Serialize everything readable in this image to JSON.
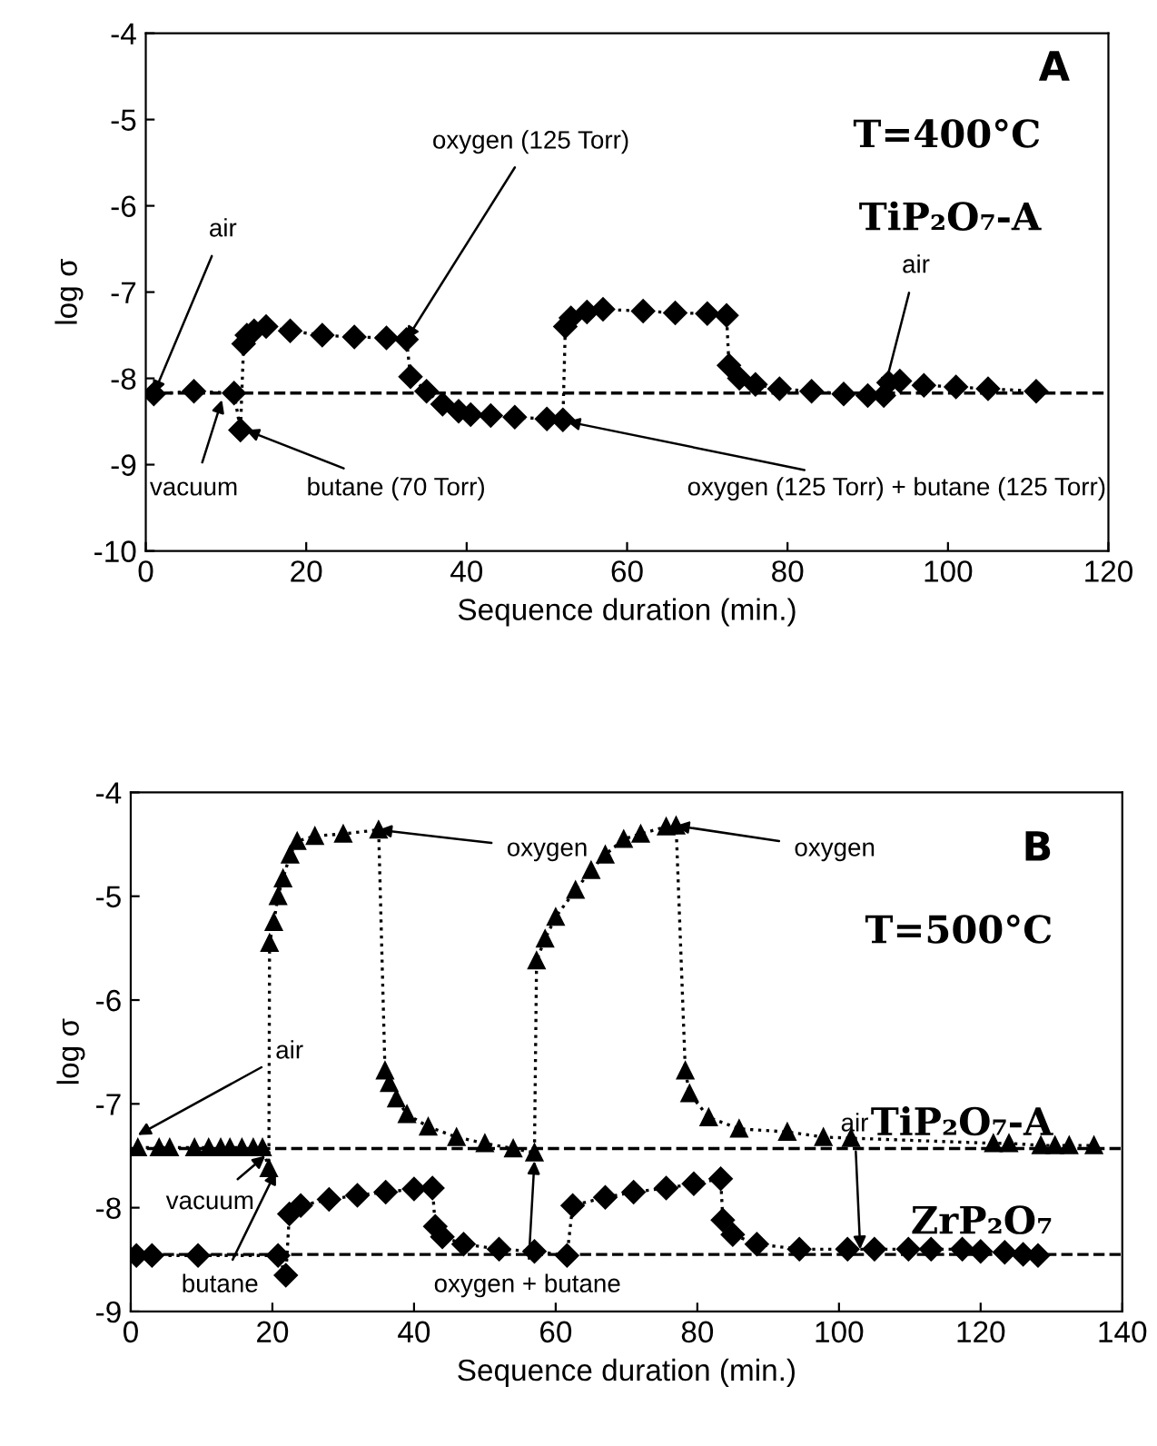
{
  "chart_data": [
    {
      "type": "line",
      "xlabel": "Sequence duration (min.)",
      "ylabel": "log σ",
      "xlim": [
        0,
        120
      ],
      "xticks": [
        0,
        20,
        40,
        60,
        80,
        100,
        120
      ],
      "ylim": [
        -10,
        -4
      ],
      "yticks": [
        -10,
        -9,
        -8,
        -7,
        -6,
        -5,
        -4
      ],
      "grid": false,
      "legend": false,
      "line_style": "dotted",
      "series": [
        {
          "color": "#000000",
          "marker": "diamond",
          "x": [
            1,
            6,
            11,
            11.8,
            12.2,
            12.6,
            13.5,
            15,
            18,
            22,
            26,
            30,
            32.5,
            33,
            35,
            37,
            39,
            40.5,
            43,
            46,
            50,
            52,
            52.3,
            53,
            55,
            57,
            62,
            66,
            70,
            72.4,
            72.7,
            74,
            76,
            79,
            83,
            87,
            90,
            92,
            92.6,
            94,
            97,
            101,
            105,
            111
          ],
          "values": [
            -8.18,
            -8.15,
            -8.17,
            -8.6,
            -7.6,
            -7.5,
            -7.45,
            -7.4,
            -7.45,
            -7.5,
            -7.52,
            -7.53,
            -7.55,
            -7.98,
            -8.15,
            -8.3,
            -8.38,
            -8.42,
            -8.43,
            -8.45,
            -8.47,
            -8.48,
            -7.4,
            -7.3,
            -7.23,
            -7.2,
            -7.22,
            -7.24,
            -7.25,
            -7.27,
            -7.85,
            -8.0,
            -8.07,
            -8.12,
            -8.15,
            -8.18,
            -8.2,
            -8.2,
            -8.05,
            -8.03,
            -8.08,
            -8.1,
            -8.12,
            -8.15
          ]
        }
      ],
      "ref_lines": [
        {
          "axis": "y",
          "value": -8.17,
          "line_style": "dashed",
          "color": "#000000"
        }
      ],
      "annotations": [
        "A",
        "T=400°C",
        "TiP₂O₇-A",
        {
          "text": "air",
          "x": 1,
          "y": -8.18
        },
        {
          "text": "vacuum",
          "x": 9.5,
          "y": -8.25
        },
        {
          "text": "butane (70 Torr)",
          "x": 12.5,
          "y": -8.6
        },
        {
          "text": "oxygen (125 Torr)",
          "x": 32.5,
          "y": -7.55
        },
        {
          "text": "oxygen (125 Torr) + butane (125 Torr)",
          "x": 52.5,
          "y": -8.5
        },
        {
          "text": "air",
          "x": 92,
          "y": -8.15
        }
      ]
    },
    {
      "type": "line",
      "xlabel": "Sequence duration (min.)",
      "ylabel": "log σ",
      "xlim": [
        0,
        140
      ],
      "xticks": [
        0,
        20,
        40,
        60,
        80,
        100,
        120,
        140
      ],
      "ylim": [
        -9,
        -4
      ],
      "yticks": [
        -9,
        -8,
        -7,
        -6,
        -5,
        -4
      ],
      "grid": false,
      "legend": false,
      "line_style": "dotted",
      "series": [
        {
          "color": "#000000",
          "marker": "triangle",
          "x": [
            1,
            4,
            5.5,
            9,
            11,
            12.7,
            14,
            15.7,
            17.3,
            18.6,
            19.5,
            19.6,
            20.2,
            20.8,
            21.5,
            22.5,
            23.5,
            26,
            30,
            35,
            35.9,
            36.5,
            37.5,
            39,
            42,
            46,
            50,
            54,
            57,
            57.3,
            58.5,
            60,
            62.8,
            65,
            67,
            69.6,
            72,
            75.6,
            77,
            78.3,
            78.9,
            81.6,
            85.9,
            92.7,
            97.8,
            101.7,
            121.8,
            124,
            128.5,
            130.5,
            132.5,
            136
          ],
          "values": [
            -7.42,
            -7.42,
            -7.42,
            -7.42,
            -7.42,
            -7.42,
            -7.42,
            -7.42,
            -7.42,
            -7.42,
            -7.62,
            -5.45,
            -5.25,
            -5.0,
            -4.83,
            -4.6,
            -4.47,
            -4.42,
            -4.4,
            -4.36,
            -6.68,
            -6.8,
            -6.95,
            -7.1,
            -7.22,
            -7.32,
            -7.38,
            -7.43,
            -7.47,
            -5.62,
            -5.41,
            -5.2,
            -4.94,
            -4.75,
            -4.6,
            -4.45,
            -4.4,
            -4.33,
            -4.32,
            -6.68,
            -6.9,
            -7.13,
            -7.24,
            -7.27,
            -7.32,
            -7.33,
            -7.38,
            -7.38,
            -7.4,
            -7.4,
            -7.4,
            -7.4
          ]
        },
        {
          "color": "#000000",
          "marker": "diamond",
          "x": [
            0.8,
            3,
            9.5,
            20.8,
            21.9,
            22.4,
            24,
            28,
            32,
            36,
            40,
            42.6,
            43,
            44,
            47,
            52,
            57,
            61.6,
            62.4,
            67,
            71,
            75.6,
            79.5,
            83.3,
            83.6,
            85,
            88.4,
            94.4,
            101.2,
            105,
            109.8,
            113,
            117.4,
            120,
            123.4,
            126,
            128.1
          ],
          "values": [
            -8.46,
            -8.46,
            -8.46,
            -8.46,
            -8.65,
            -8.06,
            -7.98,
            -7.92,
            -7.88,
            -7.85,
            -7.82,
            -7.81,
            -8.18,
            -8.28,
            -8.35,
            -8.4,
            -8.42,
            -8.46,
            -7.98,
            -7.9,
            -7.85,
            -7.81,
            -7.77,
            -7.72,
            -8.12,
            -8.26,
            -8.35,
            -8.4,
            -8.4,
            -8.4,
            -8.4,
            -8.4,
            -8.4,
            -8.42,
            -8.43,
            -8.45,
            -8.46
          ]
        }
      ],
      "ref_lines": [
        {
          "axis": "y",
          "value": -7.43,
          "line_style": "dashed",
          "color": "#000000"
        },
        {
          "axis": "y",
          "value": -8.45,
          "line_style": "dashed",
          "color": "#000000"
        }
      ],
      "annotations": [
        "B",
        "T=500°C",
        "TiP₂O₇-A",
        "ZrP₂O₇",
        {
          "text": "air",
          "x": 1,
          "y": -7.3
        },
        {
          "text": "vacuum",
          "x": 19,
          "y": -7.5
        },
        {
          "text": "butane",
          "x": 20.5,
          "y": -7.65
        },
        {
          "text": "oxygen",
          "x": 35,
          "y": -4.36
        },
        {
          "text": "oxygen",
          "x": 77,
          "y": -4.32
        },
        {
          "text": "oxygen + butane",
          "x": 57,
          "y": -7.55
        },
        {
          "text": "air",
          "x": 103,
          "y": -8.4
        }
      ]
    }
  ]
}
